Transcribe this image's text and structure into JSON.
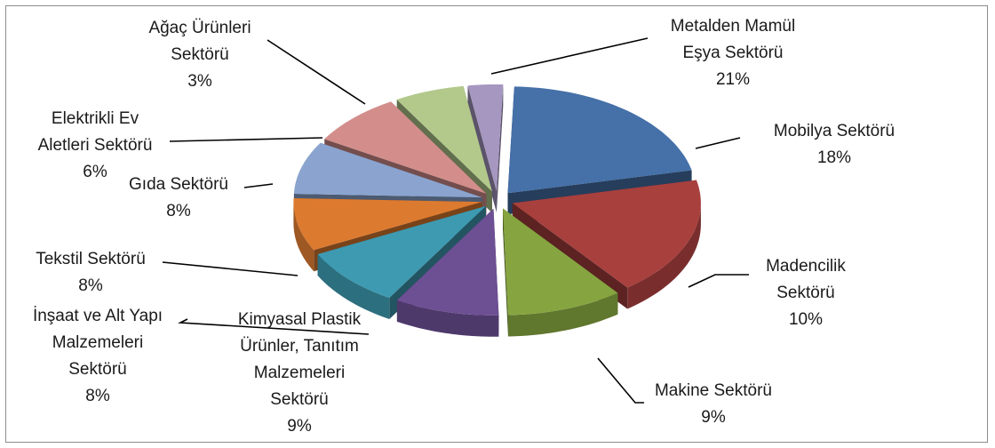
{
  "chart_data": {
    "type": "pie",
    "style": "3d-exploded",
    "categories": [
      "Metalden Mamül Eşya Sektörü",
      "Mobilya Sektörü",
      "Madencilik Sektörü",
      "Makine Sektörü",
      "Kimyasal Plastik Ürünler, Tanıtım Malzemeleri Sektörü",
      "İnşaat ve Alt Yapı Malzemeleri Sektörü",
      "Tekstil Sektörü",
      "Gıda Sektörü",
      "Elektrikli Ev Aletleri Sektörü",
      "Ağaç Ürünleri Sektörü"
    ],
    "values": [
      21,
      18,
      10,
      9,
      9,
      8,
      8,
      8,
      6,
      3
    ],
    "data_labels": [
      {
        "lines": [
          "Metalden Mamül",
          "Eşya Sektörü",
          "21%"
        ]
      },
      {
        "lines": [
          "Mobilya Sektörü",
          "18%"
        ]
      },
      {
        "lines": [
          "Madencilik",
          "Sektörü",
          "10%"
        ]
      },
      {
        "lines": [
          "Makine Sektörü",
          "9%"
        ]
      },
      {
        "lines": [
          "Kimyasal Plastik",
          "Ürünler, Tanıtım",
          "Malzemeleri",
          "Sektörü",
          "9%"
        ]
      },
      {
        "lines": [
          "İnşaat ve Alt Yapı",
          "Malzemeleri",
          "Sektörü",
          "8%"
        ]
      },
      {
        "lines": [
          "Tekstil Sektörü",
          "8%"
        ]
      },
      {
        "lines": [
          "Gıda Sektörü",
          "8%"
        ]
      },
      {
        "lines": [
          "Elektrikli Ev",
          "Aletleri Sektörü",
          "6%"
        ]
      },
      {
        "lines": [
          "Ağaç Ürünleri",
          "Sektörü",
          "3%"
        ]
      }
    ],
    "colors": [
      "#4570a8",
      "#a8403e",
      "#86a540",
      "#6d4f94",
      "#3d9ab1",
      "#dc7a30",
      "#8aa4cf",
      "#d38e8c",
      "#b3c98c",
      "#a597c0"
    ],
    "legend": "none",
    "title": ""
  }
}
